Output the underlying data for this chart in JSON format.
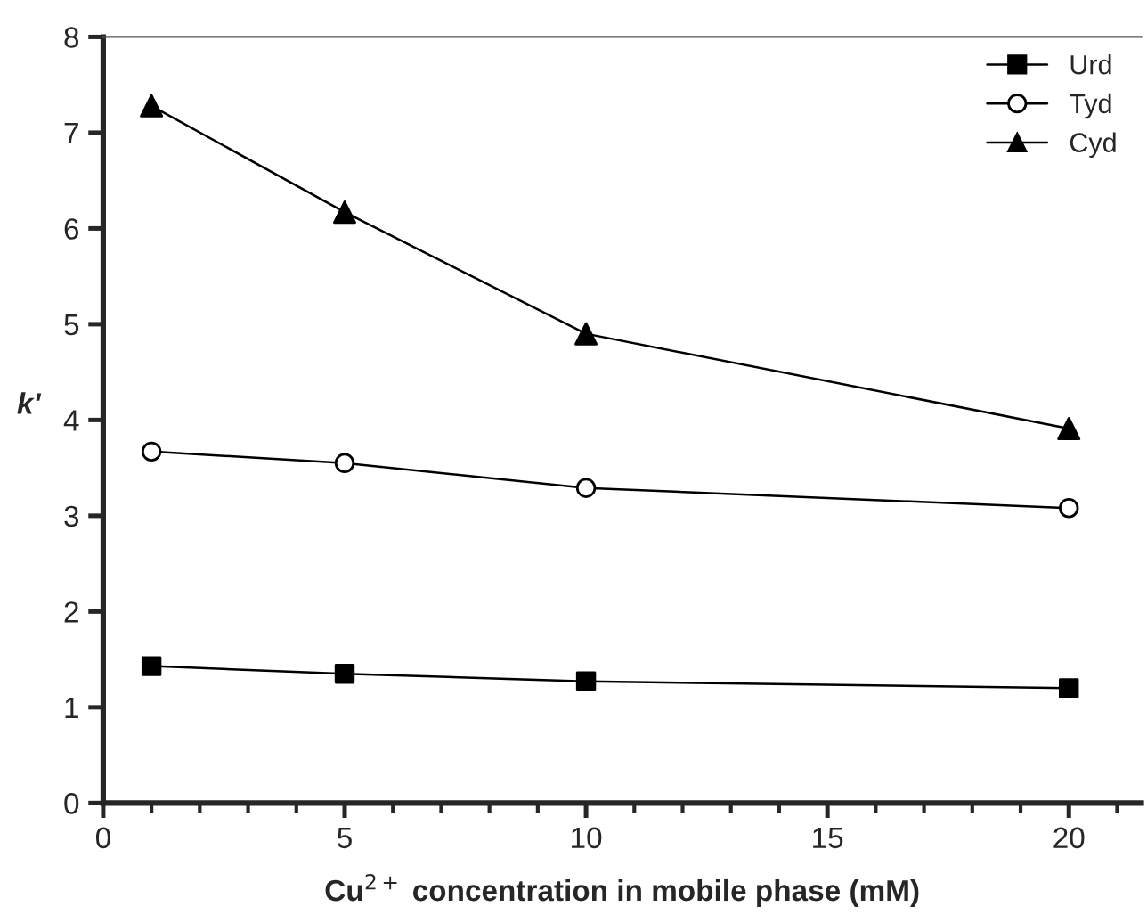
{
  "chart_data": {
    "type": "line",
    "xlabel": "Cu$^{2+}$ concentration in mobile phase (mM)",
    "ylabel": "k'",
    "x": [
      1,
      5,
      10,
      20
    ],
    "series": [
      {
        "name": "Urd",
        "color": "#000000",
        "marker": "square",
        "values": [
          1.43,
          1.35,
          1.27,
          1.2
        ]
      },
      {
        "name": "Tyd",
        "color": "#000000",
        "marker": "circle",
        "values": [
          3.67,
          3.55,
          3.29,
          3.08
        ]
      },
      {
        "name": "Cyd",
        "color": "#000000",
        "marker": "triangle",
        "values": [
          7.28,
          6.17,
          4.9,
          3.91
        ]
      }
    ],
    "xlim": [
      0,
      21.5
    ],
    "xticks": [
      0,
      5,
      10,
      15,
      20
    ],
    "ylim": [
      0,
      8
    ],
    "yticks": [
      0,
      1,
      2,
      3,
      4,
      5,
      6,
      7,
      8
    ],
    "grid": false,
    "legend": "top right",
    "line_style": "solid"
  }
}
